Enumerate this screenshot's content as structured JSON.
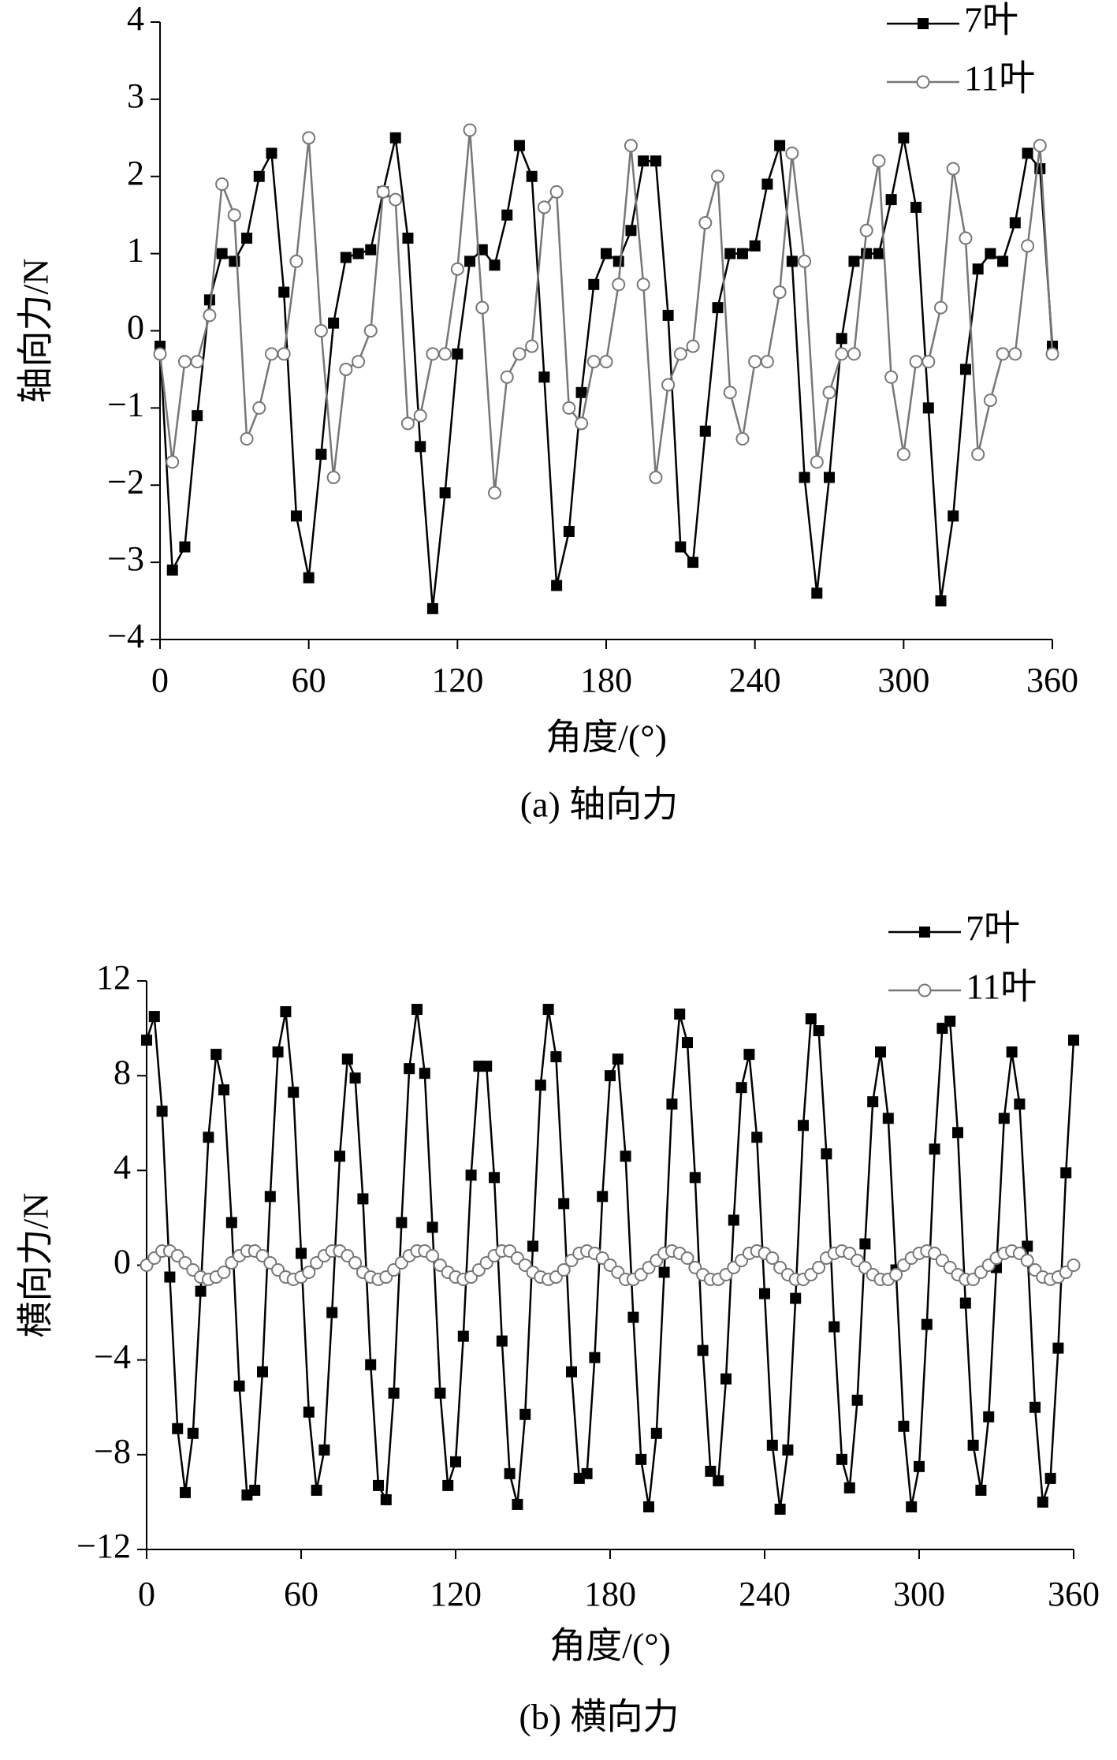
{
  "chart_data": [
    {
      "type": "line",
      "caption": "(a) 轴向力",
      "xlabel": "角度/(°)",
      "ylabel": "轴向力/N",
      "xlim": [
        0,
        360
      ],
      "xticks": [
        0,
        60,
        120,
        180,
        240,
        300,
        360
      ],
      "ylim": [
        -4,
        4
      ],
      "yticks": [
        {
          "value": -4,
          "label": "−4"
        },
        {
          "value": -3,
          "label": "−3"
        },
        {
          "value": -2,
          "label": "−2"
        },
        {
          "value": -1,
          "label": "−1"
        },
        0,
        1,
        2,
        3,
        4
      ],
      "legend": "upper right",
      "x": [
        0,
        5,
        10,
        15,
        20,
        25,
        30,
        35,
        40,
        45,
        50,
        55,
        60,
        65,
        70,
        75,
        80,
        85,
        90,
        95,
        100,
        105,
        110,
        115,
        120,
        125,
        130,
        135,
        140,
        145,
        150,
        155,
        160,
        165,
        170,
        175,
        180,
        185,
        190,
        195,
        200,
        205,
        210,
        215,
        220,
        225,
        230,
        235,
        240,
        245,
        250,
        255,
        260,
        265,
        270,
        275,
        280,
        285,
        290,
        295,
        300,
        305,
        310,
        315,
        320,
        325,
        330,
        335,
        340,
        345,
        350,
        355,
        360
      ],
      "series": [
        {
          "name": "7叶",
          "color": "#000000",
          "marker": "square",
          "values": [
            -0.2,
            -3.1,
            -2.8,
            -1.1,
            0.4,
            1.0,
            0.9,
            1.2,
            2.0,
            2.3,
            0.5,
            -2.4,
            -3.2,
            -1.6,
            0.1,
            0.95,
            1.0,
            1.05,
            1.8,
            2.5,
            1.2,
            -1.5,
            -3.6,
            -2.1,
            -0.3,
            0.9,
            1.05,
            0.85,
            1.5,
            2.4,
            2.0,
            -0.6,
            -3.3,
            -2.6,
            -0.8,
            0.6,
            1.0,
            0.9,
            1.3,
            2.2,
            2.2,
            0.2,
            -2.8,
            -3.0,
            -1.3,
            0.3,
            1.0,
            1.0,
            1.1,
            1.9,
            2.4,
            0.9,
            -1.9,
            -3.4,
            -1.9,
            -0.1,
            0.9,
            1.0,
            1.0,
            1.7,
            2.5,
            1.6,
            -1.0,
            -3.5,
            -2.4,
            -0.5,
            0.8,
            1.0,
            0.9,
            1.4,
            2.3,
            2.1,
            -0.2
          ]
        },
        {
          "name": "11叶",
          "color": "#777777",
          "marker": "circle",
          "values": [
            -0.3,
            -1.7,
            -0.4,
            -0.4,
            0.2,
            1.9,
            1.5,
            -1.4,
            -1.0,
            -0.3,
            -0.3,
            0.9,
            2.5,
            0.0,
            -1.9,
            -0.5,
            -0.4,
            0.0,
            1.8,
            1.7,
            -1.2,
            -1.1,
            -0.3,
            -0.3,
            0.8,
            2.6,
            0.3,
            -2.1,
            -0.6,
            -0.3,
            -0.2,
            1.6,
            1.8,
            -1.0,
            -1.2,
            -0.4,
            -0.4,
            0.6,
            2.4,
            0.6,
            -1.9,
            -0.7,
            -0.3,
            -0.2,
            1.4,
            2.0,
            -0.8,
            -1.4,
            -0.4,
            -0.4,
            0.5,
            2.3,
            0.9,
            -1.7,
            -0.8,
            -0.3,
            -0.3,
            1.3,
            2.2,
            -0.6,
            -1.6,
            -0.4,
            -0.4,
            0.3,
            2.1,
            1.2,
            -1.6,
            -0.9,
            -0.3,
            -0.3,
            1.1,
            2.4,
            -0.3
          ]
        }
      ]
    },
    {
      "type": "line",
      "caption": "(b) 横向力",
      "xlabel": "角度/(°)",
      "ylabel": "横向力/N",
      "xlim": [
        0,
        360
      ],
      "xticks": [
        0,
        60,
        120,
        180,
        240,
        300,
        360
      ],
      "ylim": [
        -12,
        12
      ],
      "yticks": [
        {
          "value": -12,
          "label": "−12"
        },
        {
          "value": -8,
          "label": "−8"
        },
        {
          "value": -4,
          "label": "−4"
        },
        0,
        4,
        8,
        12
      ],
      "legend": "upper right",
      "x": [
        0,
        3,
        6,
        9,
        12,
        15,
        18,
        21,
        24,
        27,
        30,
        33,
        36,
        39,
        42,
        45,
        48,
        51,
        54,
        57,
        60,
        63,
        66,
        69,
        72,
        75,
        78,
        81,
        84,
        87,
        90,
        93,
        96,
        99,
        102,
        105,
        108,
        111,
        114,
        117,
        120,
        123,
        126,
        129,
        132,
        135,
        138,
        141,
        144,
        147,
        150,
        153,
        156,
        159,
        162,
        165,
        168,
        171,
        174,
        177,
        180,
        183,
        186,
        189,
        192,
        195,
        198,
        201,
        204,
        207,
        210,
        213,
        216,
        219,
        222,
        225,
        228,
        231,
        234,
        237,
        240,
        243,
        246,
        249,
        252,
        255,
        258,
        261,
        264,
        267,
        270,
        273,
        276,
        279,
        282,
        285,
        288,
        291,
        294,
        297,
        300,
        303,
        306,
        309,
        312,
        315,
        318,
        321,
        324,
        327,
        330,
        333,
        336,
        339,
        342,
        345,
        348,
        351,
        354,
        357,
        360
      ],
      "series": [
        {
          "name": "7叶",
          "color": "#000000",
          "marker": "square",
          "values": [
            9.5,
            10.5,
            6.5,
            -0.5,
            -6.9,
            -9.6,
            -7.1,
            -1.1,
            5.4,
            8.9,
            7.4,
            1.8,
            -5.1,
            -9.7,
            -9.5,
            -4.5,
            2.9,
            9.0,
            10.7,
            7.3,
            0.5,
            -6.2,
            -9.5,
            -7.8,
            -2.0,
            4.6,
            8.7,
            7.9,
            2.8,
            -4.2,
            -9.3,
            -9.9,
            -5.4,
            1.8,
            8.3,
            10.8,
            8.1,
            1.6,
            -5.4,
            -9.3,
            -8.3,
            -3.0,
            3.8,
            8.4,
            8.4,
            3.7,
            -3.2,
            -8.8,
            -10.1,
            -6.3,
            0.8,
            7.6,
            10.8,
            8.8,
            2.6,
            -4.5,
            -9.0,
            -8.8,
            -3.9,
            2.9,
            8.0,
            8.7,
            4.6,
            -2.2,
            -8.2,
            -10.2,
            -7.1,
            -0.3,
            6.8,
            10.6,
            9.4,
            3.7,
            -3.6,
            -8.7,
            -9.1,
            -4.8,
            1.9,
            7.5,
            8.9,
            5.4,
            -1.2,
            -7.6,
            -10.3,
            -7.8,
            -1.4,
            5.9,
            10.4,
            9.9,
            4.7,
            -2.6,
            -8.2,
            -9.4,
            -5.7,
            0.9,
            6.9,
            9.0,
            6.2,
            -0.2,
            -6.8,
            -10.2,
            -8.5,
            -2.5,
            4.9,
            10.0,
            10.3,
            5.6,
            -1.6,
            -7.6,
            -9.5,
            -6.4,
            -0.1,
            6.2,
            9.0,
            6.8,
            0.8,
            -6.0,
            -10.0,
            -9.0,
            -3.5,
            3.9,
            9.5
          ]
        },
        {
          "name": "11叶",
          "color": "#777777",
          "marker": "circle",
          "values": [
            0.0,
            0.3,
            0.6,
            0.6,
            0.4,
            0.1,
            -0.2,
            -0.5,
            -0.6,
            -0.5,
            -0.3,
            0.1,
            0.4,
            0.6,
            0.6,
            0.4,
            0.1,
            -0.2,
            -0.5,
            -0.6,
            -0.5,
            -0.3,
            0.1,
            0.4,
            0.6,
            0.6,
            0.4,
            0.1,
            -0.3,
            -0.5,
            -0.6,
            -0.5,
            -0.2,
            0.1,
            0.4,
            0.6,
            0.6,
            0.4,
            0.0,
            -0.3,
            -0.5,
            -0.6,
            -0.5,
            -0.2,
            0.1,
            0.4,
            0.6,
            0.6,
            0.3,
            0.0,
            -0.3,
            -0.5,
            -0.6,
            -0.5,
            -0.2,
            0.2,
            0.5,
            0.6,
            0.5,
            0.3,
            0.0,
            -0.3,
            -0.6,
            -0.6,
            -0.4,
            -0.1,
            0.2,
            0.5,
            0.6,
            0.5,
            0.3,
            -0.1,
            -0.4,
            -0.6,
            -0.6,
            -0.4,
            -0.1,
            0.2,
            0.5,
            0.6,
            0.5,
            0.3,
            -0.1,
            -0.4,
            -0.6,
            -0.6,
            -0.4,
            -0.1,
            0.3,
            0.5,
            0.6,
            0.5,
            0.2,
            -0.1,
            -0.4,
            -0.6,
            -0.6,
            -0.4,
            0.0,
            0.3,
            0.5,
            0.6,
            0.5,
            0.2,
            -0.1,
            -0.4,
            -0.6,
            -0.6,
            -0.3,
            0.0,
            0.3,
            0.5,
            0.6,
            0.5,
            0.2,
            -0.2,
            -0.5,
            -0.6,
            -0.5,
            -0.3,
            0.0
          ]
        }
      ]
    }
  ]
}
